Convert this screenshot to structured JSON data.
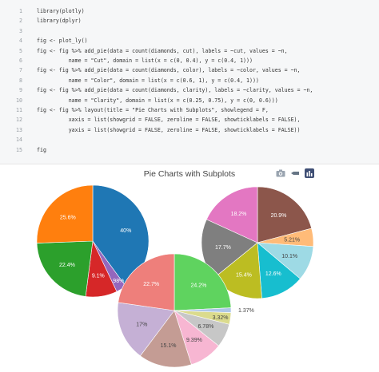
{
  "code": {
    "lines": [
      {
        "n": "1",
        "text": "library(plotly)"
      },
      {
        "n": "2",
        "text": "library(dplyr)"
      },
      {
        "n": "3",
        "text": ""
      },
      {
        "n": "4",
        "text": "fig <- plot_ly()"
      },
      {
        "n": "5",
        "text": "fig <- fig %>% add_pie(data = count(diamonds, cut), labels = ~cut, values = ~n,"
      },
      {
        "n": "6",
        "text": "          name = \"Cut\", domain = list(x = c(0, 0.4), y = c(0.4, 1)))"
      },
      {
        "n": "7",
        "text": "fig <- fig %>% add_pie(data = count(diamonds, color), labels = ~color, values = ~n,"
      },
      {
        "n": "8",
        "text": "          name = \"Color\", domain = list(x = c(0.6, 1), y = c(0.4, 1)))"
      },
      {
        "n": "9",
        "text": "fig <- fig %>% add_pie(data = count(diamonds, clarity), labels = ~clarity, values = ~n,"
      },
      {
        "n": "10",
        "text": "          name = \"Clarity\", domain = list(x = c(0.25, 0.75), y = c(0, 0.6)))"
      },
      {
        "n": "11",
        "text": "fig <- fig %>% layout(title = \"Pie Charts with Subplots\", showlegend = F,"
      },
      {
        "n": "12",
        "text": "          xaxis = list(showgrid = FALSE, zeroline = FALSE, showticklabels = FALSE),"
      },
      {
        "n": "13",
        "text": "          yaxis = list(showgrid = FALSE, zeroline = FALSE, showticklabels = FALSE))"
      },
      {
        "n": "14",
        "text": ""
      },
      {
        "n": "15",
        "text": "fig"
      }
    ]
  },
  "modebar": {
    "icons": [
      "camera-icon",
      "zoom-icon",
      "plotly-logo-icon"
    ]
  },
  "chart_data": {
    "type": "pie",
    "title": "Pie Charts with Subplots",
    "legend": false,
    "pies": [
      {
        "slices": [
          {
            "value": 40,
            "label": "40%",
            "color": "#1f77b4"
          },
          {
            "value": 2.98,
            "label": "2.98%",
            "color": "#9467bd"
          },
          {
            "value": 9.1,
            "label": "9.1%",
            "color": "#d62728"
          },
          {
            "value": 22.4,
            "label": "22.4%",
            "color": "#2ca02c"
          },
          {
            "value": 25.6,
            "label": "25.6%",
            "color": "#ff7f0e"
          }
        ]
      },
      {
        "slices": [
          {
            "value": 20.9,
            "label": "20.9%",
            "color": "#8c564b"
          },
          {
            "value": 5.21,
            "label": "5.21%",
            "color": "#ffbb78"
          },
          {
            "value": 10.1,
            "label": "10.1%",
            "color": "#9edae5"
          },
          {
            "value": 12.6,
            "label": "12.6%",
            "color": "#17becf"
          },
          {
            "value": 15.4,
            "label": "15.4%",
            "color": "#bcbd22"
          },
          {
            "value": 17.7,
            "label": "17.7%",
            "color": "#7f7f7f"
          },
          {
            "value": 18.2,
            "label": "18.2%",
            "color": "#e377c2"
          }
        ]
      },
      {
        "slices": [
          {
            "value": 24.2,
            "label": "24.2%",
            "color": "#5fd35f"
          },
          {
            "value": 1.37,
            "label": "1.37%",
            "color": "#aec7e8"
          },
          {
            "value": 3.32,
            "label": "3.32%",
            "color": "#dbdb8d"
          },
          {
            "value": 6.78,
            "label": "6.78%",
            "color": "#c7c7c7"
          },
          {
            "value": 9.39,
            "label": "9.39%",
            "color": "#f7b6d2"
          },
          {
            "value": 15.1,
            "label": "15.1%",
            "color": "#c49c94"
          },
          {
            "value": 17,
            "label": "17%",
            "color": "#c5b0d5"
          },
          {
            "value": 22.7,
            "label": "22.7%",
            "color": "#ee7f7b"
          }
        ]
      }
    ]
  }
}
